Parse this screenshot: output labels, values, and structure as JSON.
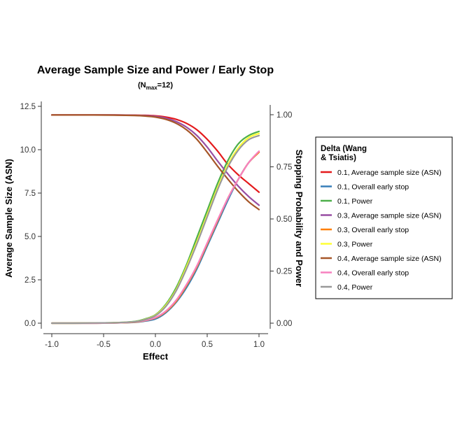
{
  "chart_data": {
    "type": "line",
    "title": "Average Sample Size and Power / Early Stop",
    "subtitle": {
      "prefix": "N",
      "subscript": "max",
      "suffix": "=12"
    },
    "xlabel": "Effect",
    "ylabel_left": "Average Sample Size (ASN)",
    "ylabel_right": "Stopping Probability and Power",
    "xlim": [
      -1.0,
      1.0
    ],
    "ylim_left": [
      0,
      12.5
    ],
    "ylim_right": [
      0,
      1.0
    ],
    "x_ticks": [
      "-1.0",
      "-0.5",
      "0.0",
      "0.5",
      "1.0"
    ],
    "y_left_ticks": [
      "0.0",
      "2.5",
      "5.0",
      "7.5",
      "10.0",
      "12.5"
    ],
    "y_right_ticks": [
      "0.00",
      "0.25",
      "0.50",
      "0.75",
      "1.00"
    ],
    "legend": {
      "title": "Delta (Wang & Tsiatis)",
      "position": "right"
    },
    "x": [
      -1.0,
      -0.8,
      -0.6,
      -0.4,
      -0.2,
      -0.1,
      0.0,
      0.1,
      0.2,
      0.3,
      0.4,
      0.5,
      0.6,
      0.7,
      0.8,
      0.9,
      1.0
    ],
    "series": [
      {
        "name": "0.1, Average sample size (ASN)",
        "color": "#e41a1c",
        "axis": "left",
        "values": [
          12.0,
          12.0,
          12.0,
          12.0,
          11.99,
          11.98,
          11.95,
          11.88,
          11.75,
          11.52,
          11.15,
          10.6,
          9.92,
          9.15,
          8.55,
          8.05,
          7.55
        ]
      },
      {
        "name": "0.1, Overall early stop",
        "color": "#377eb8",
        "axis": "right",
        "values": [
          0.0,
          0.0,
          0.0,
          0.001,
          0.004,
          0.01,
          0.02,
          0.05,
          0.1,
          0.17,
          0.26,
          0.37,
          0.48,
          0.59,
          0.69,
          0.77,
          0.82
        ]
      },
      {
        "name": "0.1, Power",
        "color": "#4daf4a",
        "axis": "right",
        "values": [
          0.0,
          0.0,
          0.001,
          0.002,
          0.008,
          0.02,
          0.04,
          0.09,
          0.17,
          0.28,
          0.41,
          0.54,
          0.67,
          0.78,
          0.86,
          0.9,
          0.92
        ]
      },
      {
        "name": "0.3, Average sample size (ASN)",
        "color": "#984ea3",
        "axis": "left",
        "values": [
          12.0,
          12.0,
          12.0,
          12.0,
          11.98,
          11.96,
          11.92,
          11.82,
          11.62,
          11.3,
          10.82,
          10.15,
          9.35,
          8.6,
          7.9,
          7.3,
          6.8
        ]
      },
      {
        "name": "0.3, Overall early stop",
        "color": "#ff7f00",
        "axis": "right",
        "values": [
          0.0,
          0.0,
          0.0,
          0.001,
          0.005,
          0.012,
          0.025,
          0.055,
          0.105,
          0.18,
          0.27,
          0.38,
          0.49,
          0.6,
          0.69,
          0.77,
          0.82
        ]
      },
      {
        "name": "0.3, Power",
        "color": "#ffff33",
        "axis": "right",
        "values": [
          0.0,
          0.0,
          0.001,
          0.002,
          0.007,
          0.018,
          0.038,
          0.085,
          0.16,
          0.27,
          0.39,
          0.52,
          0.65,
          0.76,
          0.84,
          0.89,
          0.91
        ]
      },
      {
        "name": "0.4, Average sample size (ASN)",
        "color": "#a65628",
        "axis": "left",
        "values": [
          12.0,
          12.0,
          12.0,
          11.99,
          11.97,
          11.94,
          11.88,
          11.75,
          11.52,
          11.15,
          10.6,
          9.85,
          9.05,
          8.3,
          7.6,
          7.0,
          6.55
        ]
      },
      {
        "name": "0.4, Overall early stop",
        "color": "#f781bf",
        "axis": "right",
        "values": [
          0.0,
          0.0,
          0.0,
          0.001,
          0.006,
          0.013,
          0.027,
          0.058,
          0.11,
          0.185,
          0.275,
          0.385,
          0.495,
          0.6,
          0.69,
          0.77,
          0.825
        ]
      },
      {
        "name": "0.4, Power",
        "color": "#999999",
        "axis": "right",
        "values": [
          0.0,
          0.0,
          0.001,
          0.002,
          0.007,
          0.017,
          0.036,
          0.08,
          0.155,
          0.26,
          0.38,
          0.51,
          0.64,
          0.75,
          0.83,
          0.88,
          0.9
        ]
      }
    ]
  }
}
